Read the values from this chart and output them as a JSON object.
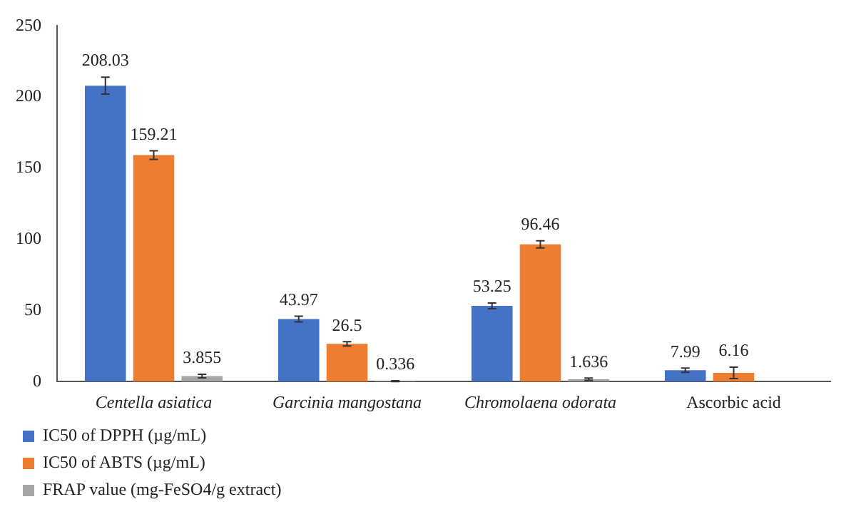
{
  "chart_data": {
    "type": "bar",
    "categories": [
      "Centella asiatica",
      "Garcinia mangostana",
      "Chromolaena odorata",
      "Ascorbic acid"
    ],
    "series": [
      {
        "name": "IC50 of DPPH (µg/mL)",
        "color": "#4472c4",
        "values": [
          208.03,
          43.97,
          53.25,
          7.99
        ],
        "errors": [
          6,
          2,
          2,
          1.5
        ]
      },
      {
        "name": "IC50 of ABTS (µg/mL)",
        "color": "#ed7d31",
        "values": [
          159.21,
          26.5,
          96.46,
          6.16
        ],
        "errors": [
          3,
          1.5,
          2.5,
          4
        ]
      },
      {
        "name": "FRAP value (mg-FeSO4/g extract)",
        "color": "#a5a5a5",
        "values": [
          3.855,
          0.336,
          1.636,
          null
        ],
        "errors": [
          1.2,
          0.3,
          0.8,
          null
        ]
      }
    ],
    "ylim": [
      0,
      250
    ],
    "yticks": [
      0,
      50,
      100,
      150,
      200,
      250
    ],
    "grid": false,
    "legend": "bottom left",
    "data_labels": true
  }
}
